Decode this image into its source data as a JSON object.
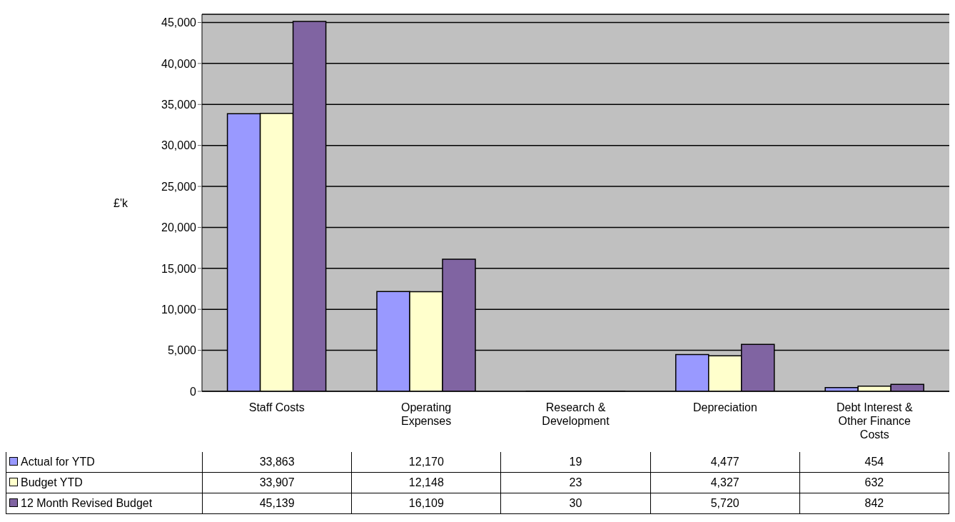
{
  "chart_data": {
    "type": "bar",
    "ylabel": "£'k",
    "categories": [
      "Staff Costs",
      "Operating Expenses",
      "Research & Development",
      "Depreciation",
      "Debt Interest & Other Finance Costs"
    ],
    "series": [
      {
        "name": "Actual for YTD",
        "color": "#9999ff",
        "values": [
          33863,
          12170,
          19,
          4477,
          454
        ],
        "value_labels": [
          "33,863",
          "12,170",
          "19",
          "4,477",
          "454"
        ]
      },
      {
        "name": "Budget YTD",
        "color": "#ffffcc",
        "values": [
          33907,
          12148,
          23,
          4327,
          632
        ],
        "value_labels": [
          "33,907",
          "12,148",
          "23",
          "4,327",
          "632"
        ]
      },
      {
        "name": "12 Month Revised Budget",
        "color": "#8064a2",
        "values": [
          45139,
          16109,
          30,
          5720,
          842
        ],
        "value_labels": [
          "45,139",
          "16,109",
          "30",
          "5,720",
          "842"
        ]
      }
    ],
    "ylim": [
      0,
      46000
    ],
    "yticks": [
      {
        "value": 0,
        "label": "0"
      },
      {
        "value": 5000,
        "label": "5,000"
      },
      {
        "value": 10000,
        "label": "10,000"
      },
      {
        "value": 15000,
        "label": "15,000"
      },
      {
        "value": 20000,
        "label": "20,000"
      },
      {
        "value": 25000,
        "label": "25,000"
      },
      {
        "value": 30000,
        "label": "30,000"
      },
      {
        "value": 35000,
        "label": "35,000"
      },
      {
        "value": 40000,
        "label": "40,000"
      },
      {
        "value": 45000,
        "label": "45,000"
      }
    ],
    "grid": "y",
    "legend": "bottom left"
  }
}
